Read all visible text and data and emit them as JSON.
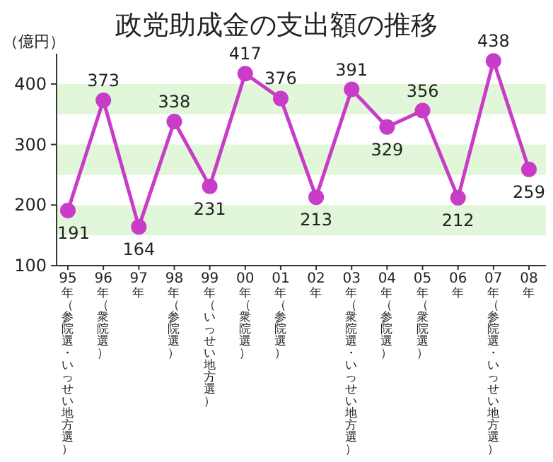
{
  "chart_data": {
    "type": "line",
    "title": "政党助成金の支出額の推移",
    "ylabel": "（億円）",
    "categories": [
      "95年（参院選・いっせい地方選）",
      "96年（衆院選）",
      "97年",
      "98年（参院選）",
      "99年（いっせい地方選）",
      "00年（衆院選）",
      "01年（参院選）",
      "02年",
      "03年（衆院選・いっせい地方選）",
      "04年（参院選）",
      "05年（衆院選）",
      "06年",
      "07年（参院選・いっせい地方選）",
      "08年"
    ],
    "series": [
      {
        "color": "#c83cc8",
        "values": [
          191,
          373,
          164,
          338,
          231,
          417,
          376,
          213,
          391,
          329,
          356,
          212,
          438,
          259
        ]
      }
    ],
    "ylim": [
      100,
      450
    ],
    "yticks": [
      100,
      200,
      300,
      400
    ],
    "bands": [
      {
        "axis": "y",
        "from": 150,
        "to": 200,
        "color": "#e2f6da"
      },
      {
        "axis": "y",
        "from": 250,
        "to": 300,
        "color": "#e2f6da"
      },
      {
        "axis": "y",
        "from": 350,
        "to": 400,
        "color": "#e2f6da"
      }
    ],
    "marker": "circle",
    "line_style": "solid",
    "data_labels": true,
    "grid": false
  }
}
